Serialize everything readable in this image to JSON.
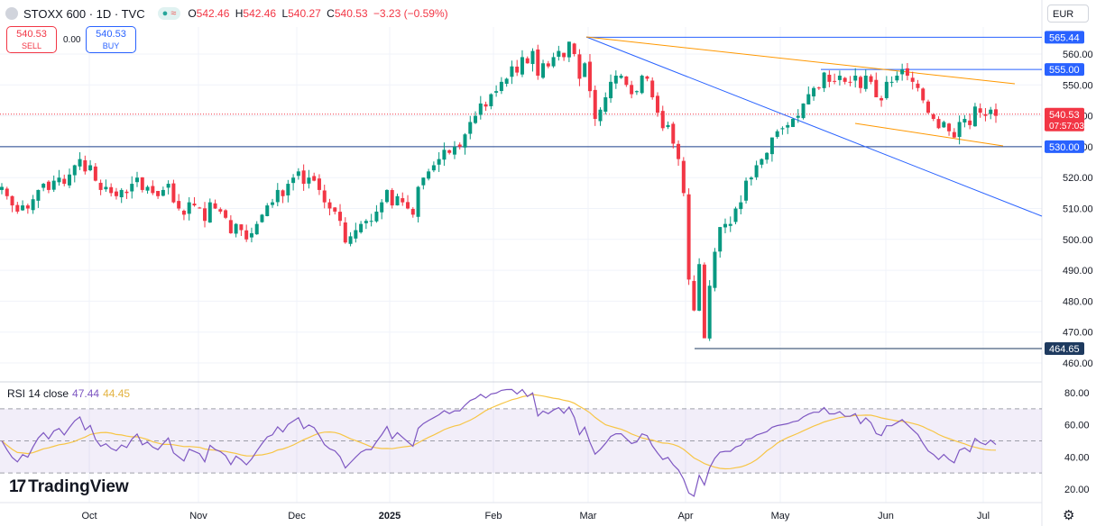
{
  "header": {
    "title": "STOXX 600 · 1D · TVC",
    "ohlc": [
      {
        "k": "O",
        "v": "542.46"
      },
      {
        "k": "H",
        "v": "542.46"
      },
      {
        "k": "L",
        "v": "540.27"
      },
      {
        "k": "C",
        "v": "540.53"
      }
    ],
    "change": "−3.23 (−0.59%)"
  },
  "trade": {
    "sell_price": "540.53",
    "sell_label": "SELL",
    "buy_price": "540.53",
    "buy_label": "BUY",
    "spread": "0.00"
  },
  "currency": "EUR",
  "rsi": {
    "label": "RSI 14 close",
    "value": "47.44",
    "ma": "44.45"
  },
  "brand": {
    "name": "TradingView"
  },
  "colors": {
    "up": "#089981",
    "down": "#f23645",
    "rsi": "#7e57c2",
    "rsi_ma": "#f7c545",
    "trend_blue": "#2962ff",
    "trend_orange": "#ff9800"
  },
  "chart_data": [
    {
      "type": "candlestick",
      "symbol": "STOXX 600",
      "interval": "1D",
      "ylim": [
        455,
        570
      ],
      "y_ticks": [
        460,
        470,
        480,
        490,
        500,
        510,
        520,
        530,
        540,
        550,
        560
      ],
      "x_ticks": [
        "Oct",
        "Nov",
        "Dec",
        "2025",
        "Feb",
        "Mar",
        "Apr",
        "May",
        "Jun",
        "Jul"
      ],
      "price_labels": [
        {
          "value": "565.44",
          "style": "blue"
        },
        {
          "value": "555.00",
          "style": "blue"
        },
        {
          "value": "540.53",
          "sub": "07:57:03",
          "style": "red"
        },
        {
          "value": "530.00",
          "style": "blue"
        },
        {
          "value": "464.65",
          "style": "dark"
        }
      ],
      "closes": [
        517,
        514,
        511,
        509,
        511,
        510,
        513,
        516,
        518,
        516,
        519,
        520,
        518,
        521,
        524,
        526,
        522,
        524,
        519,
        516,
        517,
        515,
        514,
        516,
        515,
        518,
        520,
        516,
        517,
        515,
        514,
        516,
        518,
        512,
        510,
        508,
        512,
        511,
        510,
        506,
        512,
        510,
        509,
        507,
        502,
        505,
        503,
        500,
        502,
        505,
        508,
        511,
        512,
        516,
        514,
        518,
        520,
        522,
        518,
        520,
        519,
        516,
        512,
        510,
        509,
        506,
        499,
        501,
        503,
        505,
        506,
        506,
        509,
        512,
        516,
        511,
        514,
        512,
        510,
        508,
        517,
        520,
        522,
        524,
        526,
        529,
        528,
        530,
        530,
        534,
        538,
        540,
        544,
        543,
        547,
        548,
        551,
        552,
        556,
        554,
        559,
        557,
        561,
        553,
        557,
        556,
        559,
        561,
        559,
        564,
        560,
        552,
        557,
        548,
        539,
        542,
        546,
        551,
        553,
        553,
        550,
        547,
        548,
        553,
        552,
        546,
        541,
        536,
        537,
        531,
        526,
        515,
        487,
        477,
        492,
        468,
        485,
        496,
        504,
        505,
        505,
        510,
        512,
        519,
        520,
        524,
        526,
        528,
        533,
        535,
        536,
        537,
        539,
        540,
        544,
        547,
        549,
        549,
        554,
        551,
        551,
        553,
        551,
        551,
        553,
        549,
        553,
        551,
        546,
        545,
        551,
        551,
        553,
        555,
        553,
        551,
        549,
        545,
        541,
        539,
        536,
        538,
        535,
        533,
        538,
        539,
        537,
        543,
        541,
        540,
        542,
        540
      ],
      "series": [
        {
          "name": "RSI 14 close",
          "last": 47.44,
          "ylim": [
            10,
            85
          ],
          "levels": [
            70,
            50,
            30
          ]
        },
        {
          "name": "RSI MA",
          "last": 44.45
        }
      ]
    }
  ]
}
